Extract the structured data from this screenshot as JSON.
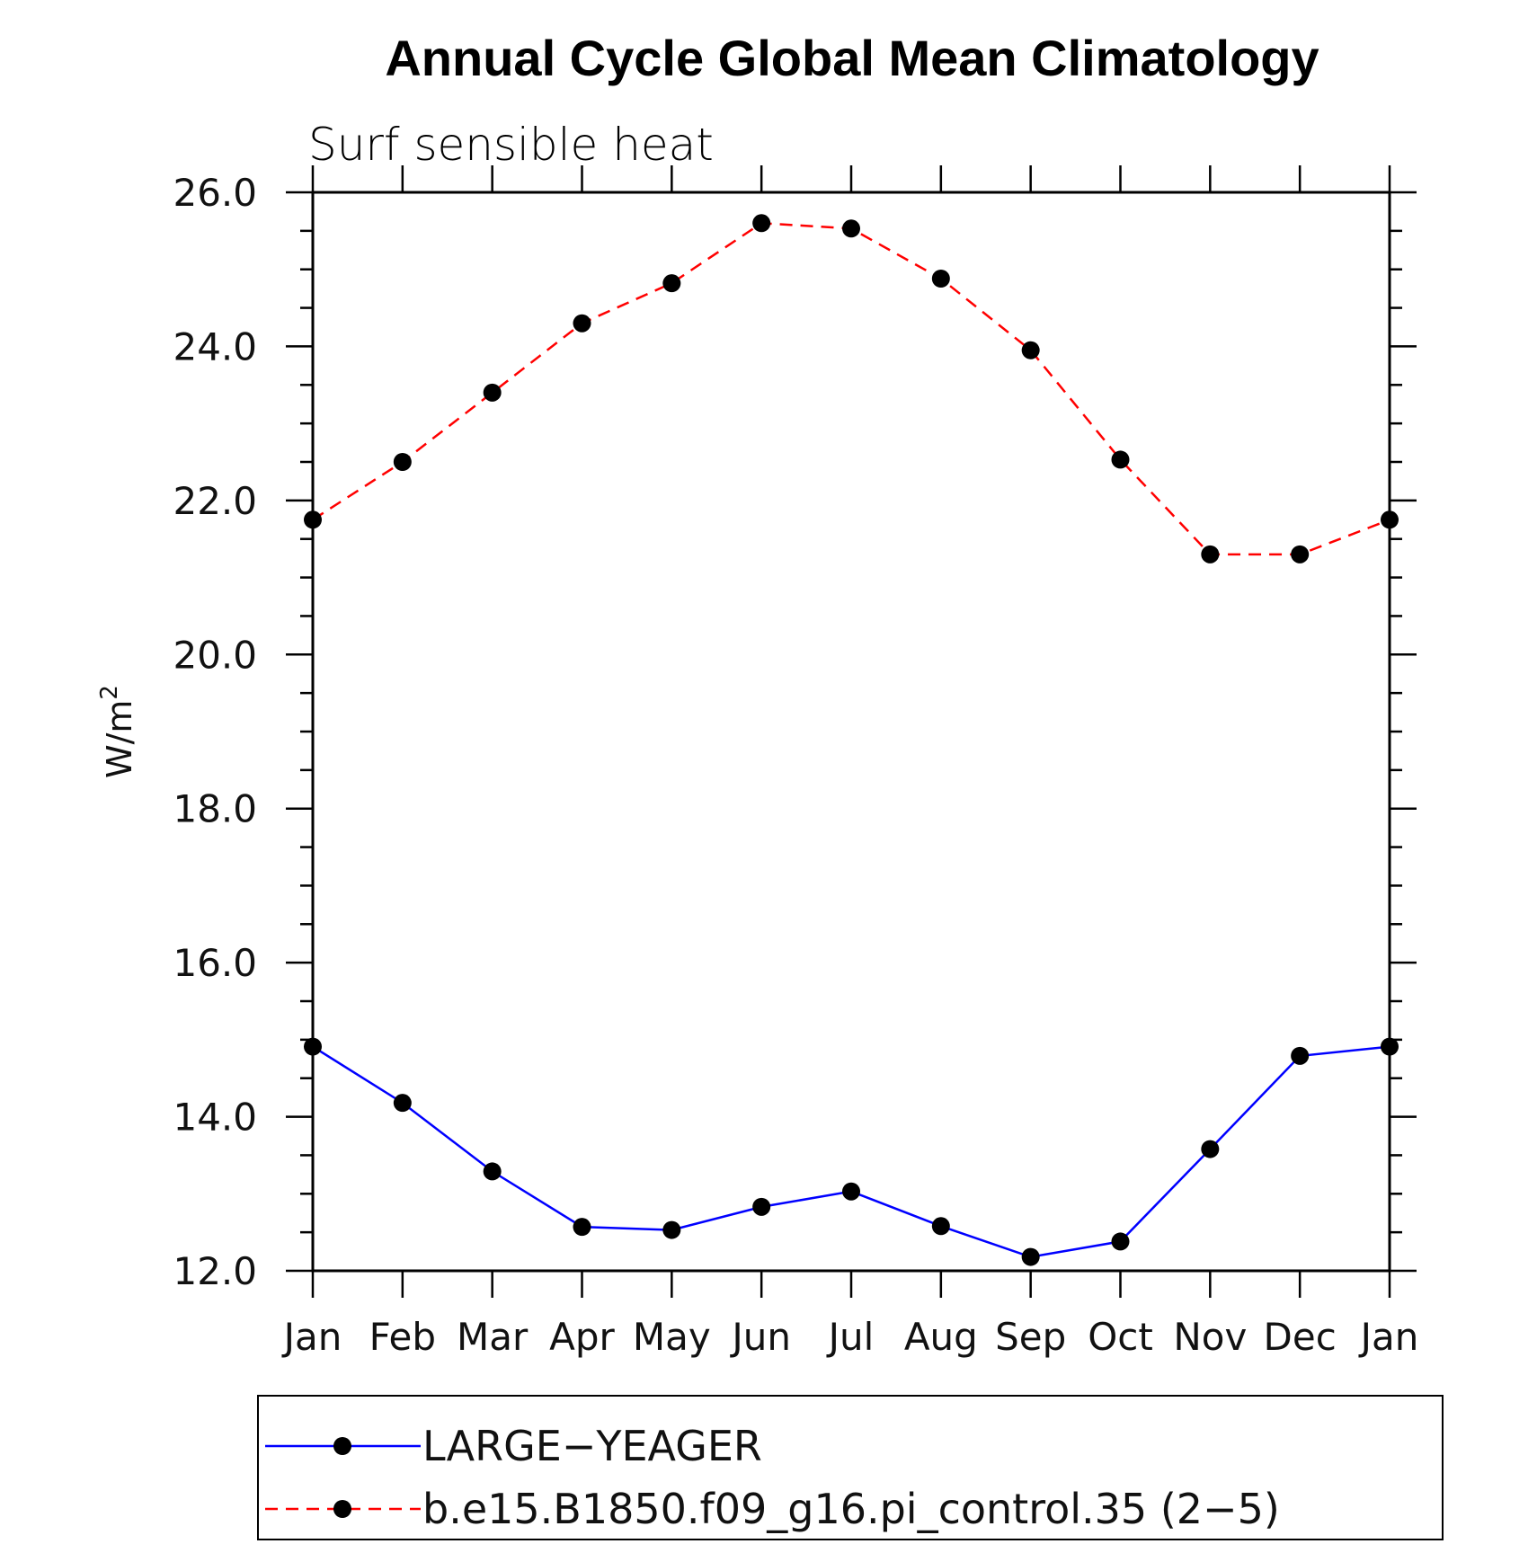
{
  "chart_data": {
    "type": "line",
    "title": "Annual Cycle Global Mean Climatology",
    "subtitle": "Surf sensible heat",
    "ylabel": "W/m",
    "ylabel_sup": "2",
    "ylim": [
      12.0,
      26.0
    ],
    "yticks": [
      "12.0",
      "14.0",
      "16.0",
      "18.0",
      "20.0",
      "22.0",
      "24.0",
      "26.0"
    ],
    "categories": [
      "Jan",
      "Feb",
      "Mar",
      "Apr",
      "May",
      "Jun",
      "Jul",
      "Aug",
      "Sep",
      "Oct",
      "Nov",
      "Dec",
      "Jan"
    ],
    "series": [
      {
        "name": "LARGE−YEAGER",
        "color": "#0000ff",
        "dash": "solid",
        "values": [
          14.91,
          14.18,
          13.29,
          12.57,
          12.53,
          12.83,
          13.03,
          12.58,
          12.18,
          12.38,
          13.58,
          14.79,
          14.91
        ]
      },
      {
        "name": "b.e15.B1850.f09_g16.pi_control.35 (2−5)",
        "color": "#ff0000",
        "dash": "dashed",
        "values": [
          21.75,
          22.5,
          23.4,
          24.3,
          24.82,
          25.6,
          25.53,
          24.88,
          23.95,
          22.53,
          21.3,
          21.3,
          21.75
        ]
      }
    ],
    "legend_position": "bottom"
  }
}
